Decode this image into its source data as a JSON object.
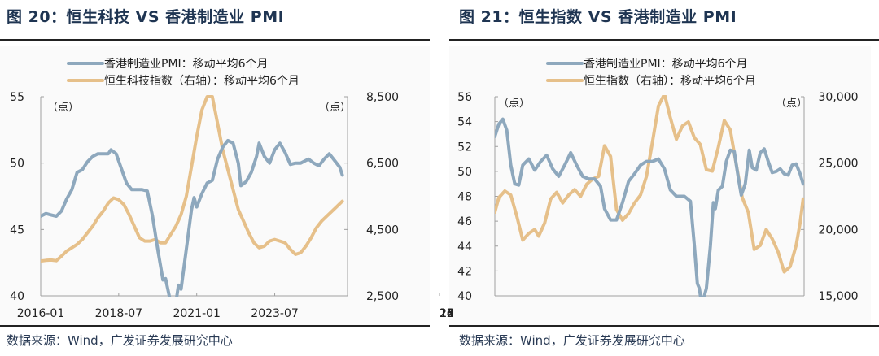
{
  "figures": [
    {
      "title": "图 20：恒生科技 VS 香港制造业 PMI",
      "source": "数据来源：Wind，广发证券发展研究中心"
    },
    {
      "title": "图 21：恒生指数 VS 香港制造业 PMI",
      "source": "数据来源：Wind，广发证券发展研究中心"
    }
  ],
  "chart_data": [
    {
      "type": "line",
      "title": "图 20：恒生科技 VS 香港制造业 PMI",
      "left_unit": "（点）",
      "right_unit": "（点）",
      "xlabel": "",
      "ylabel": "",
      "x_range": [
        "2016-01",
        "2025-11"
      ],
      "x_ticks": [
        "2016-01",
        "2018-07",
        "2021-01",
        "2023-07"
      ],
      "ylim": [
        40,
        55
      ],
      "y_ticks": [
        "40",
        "45",
        "50",
        "55"
      ],
      "y2lim": [
        2500,
        8500
      ],
      "y2_ticks": [
        "2,500",
        "4,500",
        "6,500",
        "8,500"
      ],
      "legend_position": "top-center",
      "grid": false,
      "series": [
        {
          "name": "香港制造业PMI：移动平均6个月",
          "axis": "left",
          "color": "#8ea8bd",
          "points": [
            [
              "2016-01",
              46.0
            ],
            [
              "2016-03",
              46.2
            ],
            [
              "2016-05",
              46.1
            ],
            [
              "2016-07",
              46.0
            ],
            [
              "2016-09",
              46.4
            ],
            [
              "2016-11",
              47.3
            ],
            [
              "2017-01",
              48.0
            ],
            [
              "2017-03",
              49.3
            ],
            [
              "2017-05",
              49.5
            ],
            [
              "2017-07",
              50.1
            ],
            [
              "2017-09",
              50.5
            ],
            [
              "2017-11",
              50.7
            ],
            [
              "2018-01",
              50.7
            ],
            [
              "2018-03",
              50.7
            ],
            [
              "2018-04",
              51.0
            ],
            [
              "2018-06",
              50.7
            ],
            [
              "2018-08",
              49.6
            ],
            [
              "2018-10",
              48.5
            ],
            [
              "2018-12",
              48.0
            ],
            [
              "2019-02",
              48.0
            ],
            [
              "2019-04",
              48.0
            ],
            [
              "2019-06",
              47.9
            ],
            [
              "2019-08",
              46.0
            ],
            [
              "2019-10",
              43.5
            ],
            [
              "2019-12",
              41.2
            ],
            [
              "2020-01",
              41.3
            ],
            [
              "2020-03",
              39.5
            ],
            [
              "2020-05",
              39.5
            ],
            [
              "2020-06",
              40.8
            ],
            [
              "2020-07",
              40.5
            ],
            [
              "2020-09",
              43.5
            ],
            [
              "2020-11",
              46.5
            ],
            [
              "2020-12",
              47.4
            ],
            [
              "2021-01",
              46.7
            ],
            [
              "2021-03",
              47.7
            ],
            [
              "2021-05",
              48.5
            ],
            [
              "2021-07",
              48.7
            ],
            [
              "2021-09",
              50.3
            ],
            [
              "2021-11",
              51.2
            ],
            [
              "2022-01",
              51.7
            ],
            [
              "2022-03",
              51.5
            ],
            [
              "2022-05",
              50.0
            ],
            [
              "2022-06",
              48.3
            ],
            [
              "2022-08",
              48.6
            ],
            [
              "2022-10",
              49.3
            ],
            [
              "2022-12",
              50.5
            ],
            [
              "2023-01",
              51.5
            ],
            [
              "2023-03",
              50.5
            ],
            [
              "2023-05",
              50.0
            ],
            [
              "2023-07",
              51.0
            ],
            [
              "2023-09",
              51.5
            ],
            [
              "2023-11",
              50.8
            ],
            [
              "2024-01",
              49.9
            ],
            [
              "2024-03",
              50.0
            ],
            [
              "2024-05",
              50.0
            ],
            [
              "2024-07",
              50.2
            ],
            [
              "2024-08",
              50.3
            ],
            [
              "2024-10",
              50.0
            ],
            [
              "2024-12",
              49.8
            ],
            [
              "2025-02",
              50.3
            ],
            [
              "2025-04",
              50.7
            ],
            [
              "2025-06",
              50.2
            ],
            [
              "2025-08",
              49.7
            ],
            [
              "2025-09",
              49.1
            ]
          ]
        },
        {
          "name": "恒生科技指数（右轴）：移动平均6个月",
          "axis": "right",
          "color": "#e6c08a",
          "points": [
            [
              "2016-01",
              3550
            ],
            [
              "2016-03",
              3570
            ],
            [
              "2016-05",
              3580
            ],
            [
              "2016-07",
              3560
            ],
            [
              "2016-09",
              3700
            ],
            [
              "2016-11",
              3850
            ],
            [
              "2017-01",
              3950
            ],
            [
              "2017-03",
              4050
            ],
            [
              "2017-05",
              4200
            ],
            [
              "2017-07",
              4400
            ],
            [
              "2017-09",
              4600
            ],
            [
              "2017-11",
              4850
            ],
            [
              "2018-01",
              5050
            ],
            [
              "2018-03",
              5300
            ],
            [
              "2018-05",
              5450
            ],
            [
              "2018-07",
              5400
            ],
            [
              "2018-09",
              5250
            ],
            [
              "2018-11",
              4950
            ],
            [
              "2019-01",
              4600
            ],
            [
              "2019-03",
              4250
            ],
            [
              "2019-05",
              4150
            ],
            [
              "2019-07",
              4150
            ],
            [
              "2019-09",
              4200
            ],
            [
              "2019-11",
              4100
            ],
            [
              "2020-01",
              4100
            ],
            [
              "2020-03",
              4350
            ],
            [
              "2020-05",
              4600
            ],
            [
              "2020-07",
              4950
            ],
            [
              "2020-09",
              5500
            ],
            [
              "2020-11",
              6400
            ],
            [
              "2021-01",
              7300
            ],
            [
              "2021-03",
              8100
            ],
            [
              "2021-05",
              8500
            ],
            [
              "2021-07",
              8500
            ],
            [
              "2021-09",
              7700
            ],
            [
              "2021-11",
              6900
            ],
            [
              "2022-01",
              6300
            ],
            [
              "2022-03",
              5700
            ],
            [
              "2022-05",
              5100
            ],
            [
              "2022-07",
              4750
            ],
            [
              "2022-09",
              4400
            ],
            [
              "2022-11",
              4100
            ],
            [
              "2023-01",
              3950
            ],
            [
              "2023-03",
              4000
            ],
            [
              "2023-05",
              4150
            ],
            [
              "2023-07",
              4200
            ],
            [
              "2023-09",
              4150
            ],
            [
              "2023-11",
              4100
            ],
            [
              "2024-01",
              3900
            ],
            [
              "2024-03",
              3750
            ],
            [
              "2024-05",
              3800
            ],
            [
              "2024-07",
              4000
            ],
            [
              "2024-09",
              4250
            ],
            [
              "2024-11",
              4550
            ],
            [
              "2025-01",
              4750
            ],
            [
              "2025-03",
              4900
            ],
            [
              "2025-05",
              5050
            ],
            [
              "2025-07",
              5200
            ],
            [
              "2025-09",
              5350
            ]
          ]
        }
      ]
    },
    {
      "type": "line",
      "title": "图 21：恒生指数 VS 香港制造业 PMI",
      "left_unit": "（点）",
      "right_unit": "（点）",
      "xlabel": "",
      "ylabel": "",
      "x_range": [
        2010.0,
        2025.5
      ],
      "x_ticks": [
        "2010",
        "2012",
        "2014",
        "2016",
        "2018",
        "2020",
        "2022",
        "2024"
      ],
      "ylim": [
        40,
        56
      ],
      "y_ticks": [
        "40",
        "42",
        "44",
        "46",
        "48",
        "50",
        "52",
        "54",
        "56"
      ],
      "y2lim": [
        15000,
        30000
      ],
      "y2_ticks": [
        "15,000",
        "20,000",
        "25,000",
        "30,000"
      ],
      "legend_position": "top-center",
      "grid": false,
      "series": [
        {
          "name": "香港制造业PMI：移动平均6个月",
          "axis": "left",
          "color": "#8ea8bd",
          "points": [
            [
              2010.0,
              52.8
            ],
            [
              2010.2,
              53.8
            ],
            [
              2010.4,
              54.2
            ],
            [
              2010.6,
              53.3
            ],
            [
              2010.8,
              50.5
            ],
            [
              2011.0,
              49.0
            ],
            [
              2011.2,
              48.9
            ],
            [
              2011.4,
              50.5
            ],
            [
              2011.7,
              51.0
            ],
            [
              2012.0,
              50.1
            ],
            [
              2012.3,
              50.8
            ],
            [
              2012.6,
              51.3
            ],
            [
              2012.9,
              50.2
            ],
            [
              2013.2,
              49.6
            ],
            [
              2013.5,
              50.5
            ],
            [
              2013.8,
              51.5
            ],
            [
              2014.1,
              50.5
            ],
            [
              2014.4,
              49.6
            ],
            [
              2014.7,
              49.4
            ],
            [
              2015.0,
              49.4
            ],
            [
              2015.3,
              48.8
            ],
            [
              2015.5,
              47.0
            ],
            [
              2015.8,
              46.1
            ],
            [
              2016.1,
              46.1
            ],
            [
              2016.4,
              47.5
            ],
            [
              2016.7,
              49.2
            ],
            [
              2017.0,
              49.8
            ],
            [
              2017.3,
              50.5
            ],
            [
              2017.6,
              50.8
            ],
            [
              2017.9,
              50.8
            ],
            [
              2018.2,
              51.0
            ],
            [
              2018.5,
              50.2
            ],
            [
              2018.8,
              48.5
            ],
            [
              2019.1,
              48.0
            ],
            [
              2019.5,
              48.0
            ],
            [
              2019.8,
              47.6
            ],
            [
              2020.0,
              44.0
            ],
            [
              2020.15,
              41.0
            ],
            [
              2020.25,
              40.6
            ],
            [
              2020.35,
              39.5
            ],
            [
              2020.5,
              40.0
            ],
            [
              2020.6,
              40.6
            ],
            [
              2020.8,
              44.0
            ],
            [
              2020.95,
              47.5
            ],
            [
              2021.05,
              47.0
            ],
            [
              2021.2,
              48.5
            ],
            [
              2021.4,
              48.8
            ],
            [
              2021.6,
              50.8
            ],
            [
              2021.8,
              51.7
            ],
            [
              2022.0,
              51.6
            ],
            [
              2022.2,
              49.5
            ],
            [
              2022.35,
              48.1
            ],
            [
              2022.55,
              49.0
            ],
            [
              2022.75,
              51.7
            ],
            [
              2022.9,
              50.3
            ],
            [
              2023.1,
              50.1
            ],
            [
              2023.3,
              51.5
            ],
            [
              2023.5,
              51.8
            ],
            [
              2023.7,
              50.8
            ],
            [
              2023.9,
              49.9
            ],
            [
              2024.1,
              50.0
            ],
            [
              2024.3,
              50.2
            ],
            [
              2024.5,
              49.8
            ],
            [
              2024.7,
              49.7
            ],
            [
              2024.9,
              50.5
            ],
            [
              2025.1,
              50.6
            ],
            [
              2025.3,
              49.8
            ],
            [
              2025.45,
              49.0
            ]
          ]
        },
        {
          "name": "恒生指数（右轴）：移动平均6个月",
          "axis": "right",
          "color": "#e6c08a",
          "points": [
            [
              2010.0,
              21300
            ],
            [
              2010.2,
              22400
            ],
            [
              2010.5,
              22900
            ],
            [
              2010.8,
              22600
            ],
            [
              2011.1,
              21000
            ],
            [
              2011.4,
              19200
            ],
            [
              2011.7,
              19700
            ],
            [
              2012.0,
              20000
            ],
            [
              2012.2,
              19500
            ],
            [
              2012.5,
              20500
            ],
            [
              2012.8,
              22300
            ],
            [
              2013.1,
              22800
            ],
            [
              2013.4,
              22000
            ],
            [
              2013.7,
              22600
            ],
            [
              2014.0,
              23000
            ],
            [
              2014.3,
              22500
            ],
            [
              2014.6,
              23400
            ],
            [
              2014.9,
              23800
            ],
            [
              2015.2,
              24000
            ],
            [
              2015.5,
              26300
            ],
            [
              2015.8,
              25500
            ],
            [
              2016.1,
              21500
            ],
            [
              2016.4,
              20700
            ],
            [
              2016.7,
              21200
            ],
            [
              2017.0,
              22000
            ],
            [
              2017.3,
              22600
            ],
            [
              2017.6,
              24000
            ],
            [
              2017.9,
              26600
            ],
            [
              2018.2,
              29300
            ],
            [
              2018.5,
              30200
            ],
            [
              2018.8,
              28400
            ],
            [
              2019.1,
              26800
            ],
            [
              2019.4,
              27800
            ],
            [
              2019.7,
              28100
            ],
            [
              2020.0,
              26900
            ],
            [
              2020.3,
              26400
            ],
            [
              2020.6,
              24500
            ],
            [
              2020.9,
              24400
            ],
            [
              2021.2,
              26200
            ],
            [
              2021.5,
              28200
            ],
            [
              2021.8,
              27500
            ],
            [
              2022.1,
              24900
            ],
            [
              2022.4,
              22400
            ],
            [
              2022.7,
              21300
            ],
            [
              2023.0,
              18500
            ],
            [
              2023.3,
              18800
            ],
            [
              2023.6,
              20000
            ],
            [
              2023.9,
              19300
            ],
            [
              2024.2,
              18300
            ],
            [
              2024.5,
              16800
            ],
            [
              2024.8,
              17200
            ],
            [
              2025.1,
              18800
            ],
            [
              2025.3,
              20500
            ],
            [
              2025.45,
              22300
            ]
          ]
        }
      ]
    }
  ]
}
